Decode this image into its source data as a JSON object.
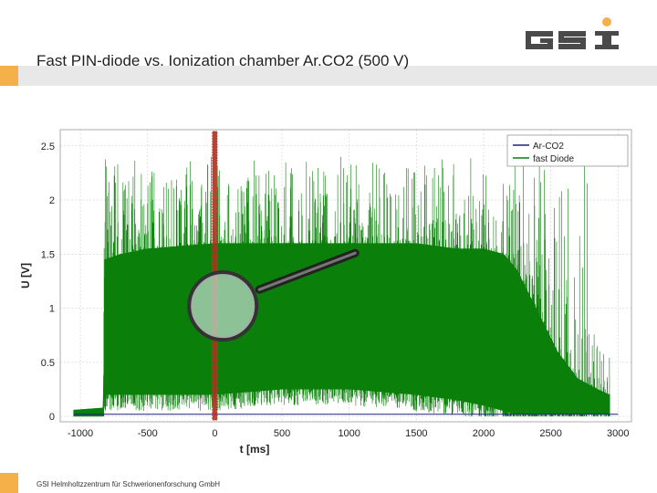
{
  "slide": {
    "title": "Fast PIN-diode  vs.  Ionization chamber Ar.CO2 (500 V)",
    "footer": "GSI Helmholtzzentrum für Schwerionenforschung GmbH",
    "logo_text": "GSI"
  },
  "colors": {
    "accent": "#f5b04a",
    "title_bar": "#e8e8e8",
    "fast_diode": "#0a7f0a",
    "ar_co2": "#1a237e",
    "marker": "#c0392b"
  },
  "chart_data": {
    "type": "line",
    "xlabel": "t [ms]",
    "ylabel": "U [V]",
    "xlim": [
      -1150,
      3100
    ],
    "ylim": [
      -0.05,
      2.65
    ],
    "x_ticks": [
      "-1000",
      "-500",
      "0",
      "500",
      "1000",
      "1500",
      "2000",
      "2500",
      "3000"
    ],
    "y_ticks": [
      "0",
      "0.5",
      "1",
      "1.5",
      "2",
      "2.5"
    ],
    "grid": true,
    "legend_position": "top-right",
    "series": [
      {
        "name": "Ar-CO2",
        "color": "#1a237e",
        "x": [
          -1050,
          3000
        ],
        "y": [
          0.02,
          0.02
        ]
      },
      {
        "name": "fast Diode",
        "color": "#0a7f0a",
        "envelope": {
          "x": [
            -1050,
            -830,
            -820,
            -700,
            -500,
            0,
            500,
            1000,
            1500,
            1800,
            2000,
            2150,
            2250,
            2350,
            2450,
            2550,
            2700,
            2850,
            2940
          ],
          "lower": [
            0.0,
            0.0,
            0.2,
            0.2,
            0.2,
            0.2,
            0.25,
            0.25,
            0.2,
            0.15,
            0.1,
            0.05,
            0.02,
            0.02,
            0.02,
            0.02,
            0.02,
            0.02,
            0.02
          ],
          "upper": [
            0.06,
            0.08,
            1.45,
            1.5,
            1.55,
            1.6,
            1.6,
            1.6,
            1.6,
            1.55,
            1.55,
            1.5,
            1.35,
            1.1,
            0.85,
            0.6,
            0.35,
            0.25,
            0.2
          ],
          "spikes_max": 2.4
        }
      }
    ],
    "annotations": [
      {
        "type": "vertical-marker",
        "x": 0
      },
      {
        "type": "magnifier",
        "x": 60,
        "y": 1.02
      }
    ]
  }
}
